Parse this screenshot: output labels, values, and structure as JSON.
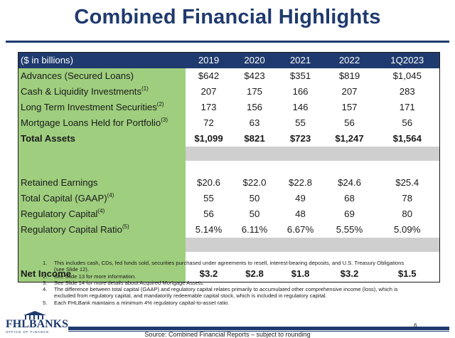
{
  "title": "Combined Financial Highlights",
  "table": {
    "header": [
      "($ in billions)",
      "2019",
      "2020",
      "2021",
      "2022",
      "1Q2023"
    ],
    "rows": [
      {
        "label": "Advances (Secured Loans)",
        "sup": "",
        "values": [
          "$642",
          "$423",
          "$351",
          "$819",
          "$1,045"
        ]
      },
      {
        "label": "Cash & Liquidity Investments",
        "sup": "(1)",
        "values": [
          "207",
          "175",
          "166",
          "207",
          "283"
        ]
      },
      {
        "label": "Long Term Investment Securities",
        "sup": "(2)",
        "values": [
          "173",
          "156",
          "146",
          "157",
          "171"
        ]
      },
      {
        "label": "Mortgage Loans Held for Portfolio",
        "sup": "(3)",
        "values": [
          "72",
          "63",
          "55",
          "56",
          "56"
        ]
      },
      {
        "label": "Total Assets",
        "sup": "",
        "values": [
          "$1,099",
          "$821",
          "$723",
          "$1,247",
          "$1,564"
        ]
      },
      {
        "label": "Retained Earnings",
        "sup": "",
        "values": [
          "$20.6",
          "$22.0",
          "$22.8",
          "$24.6",
          "$25.4"
        ]
      },
      {
        "label": "Total Capital (GAAP)",
        "sup": "(4)",
        "values": [
          "55",
          "50",
          "49",
          "68",
          "78"
        ]
      },
      {
        "label": "Regulatory Capital",
        "sup": "(4)",
        "values": [
          "56",
          "50",
          "48",
          "69",
          "80"
        ]
      },
      {
        "label": "Regulatory Capital Ratio",
        "sup": "(5)",
        "values": [
          "5.14%",
          "6.11%",
          "6.67%",
          "5.55%",
          "5.09%"
        ]
      },
      {
        "label": "Net Income",
        "sup": "",
        "values": [
          "$3.2",
          "$2.8",
          "$1.8",
          "$3.2",
          "$1.5"
        ]
      }
    ]
  },
  "footnotes": [
    {
      "num": "1.",
      "text": "This includes cash, CDs, fed funds sold, securities purchased under agreements to resell, interest-bearing deposits, and U.S. Treasury Obligations (see Slide 12)."
    },
    {
      "num": "2.",
      "text": "See Slide 13 for more information."
    },
    {
      "num": "3.",
      "text": "See Slide 14 for more details about Acquired Mortgage Assets."
    },
    {
      "num": "4.",
      "text": "The difference between total capital (GAAP) and regulatory capital relates primarily to accumulated other comprehensive income (loss), which is excluded from regulatory capital, and mandatorily redeemable capital stock, which is included in regulatory capital."
    },
    {
      "num": "5.",
      "text": "Each FHLBank maintains a minimum 4% regulatory capital-to-asset ratio."
    }
  ],
  "logo": {
    "name": "FHLBANKS",
    "sub": "OFFICE OF FINANCE"
  },
  "page_number": "6",
  "source": "Source: Combined Financial Reports – subject to rounding",
  "colors": {
    "title_blue": "#1f3a6e",
    "label_green": "#9fce7e",
    "spacer_gray": "#cfcfcf"
  }
}
